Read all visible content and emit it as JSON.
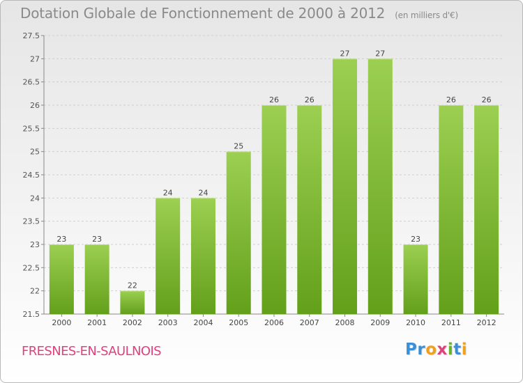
{
  "chart_data": {
    "type": "bar",
    "title": "Dotation Globale de Fonctionnement de 2000 à 2012",
    "subtitle": "(en milliers d'€)",
    "categories": [
      "2000",
      "2001",
      "2002",
      "2003",
      "2004",
      "2005",
      "2006",
      "2007",
      "2008",
      "2009",
      "2010",
      "2011",
      "2012"
    ],
    "values": [
      23,
      23,
      22,
      24,
      24,
      25,
      26,
      26,
      27,
      27,
      23,
      26,
      26
    ],
    "ylim": [
      21.5,
      27.5
    ],
    "yticks": [
      "21.5",
      "22",
      "22.5",
      "23",
      "23.5",
      "24",
      "24.5",
      "25",
      "25.5",
      "26",
      "26.5",
      "27",
      "27.5"
    ],
    "grid": true,
    "xlabel": "",
    "ylabel": ""
  },
  "place_name": "FRESNES-EN-SAULNOIS",
  "logo": {
    "letters": [
      "P",
      "r",
      "o",
      "x",
      "i",
      "t",
      "i"
    ]
  },
  "colors": {
    "bar_top": "#9ccf52",
    "bar_bottom": "#63a01a",
    "title": "#8a8a8a",
    "place": "#e0417d",
    "logo": [
      "#3a8fd6",
      "#3a8fd6",
      "#f0a020",
      "#e0417d",
      "#6ab22a",
      "#3a8fd6",
      "#f0a020"
    ]
  }
}
